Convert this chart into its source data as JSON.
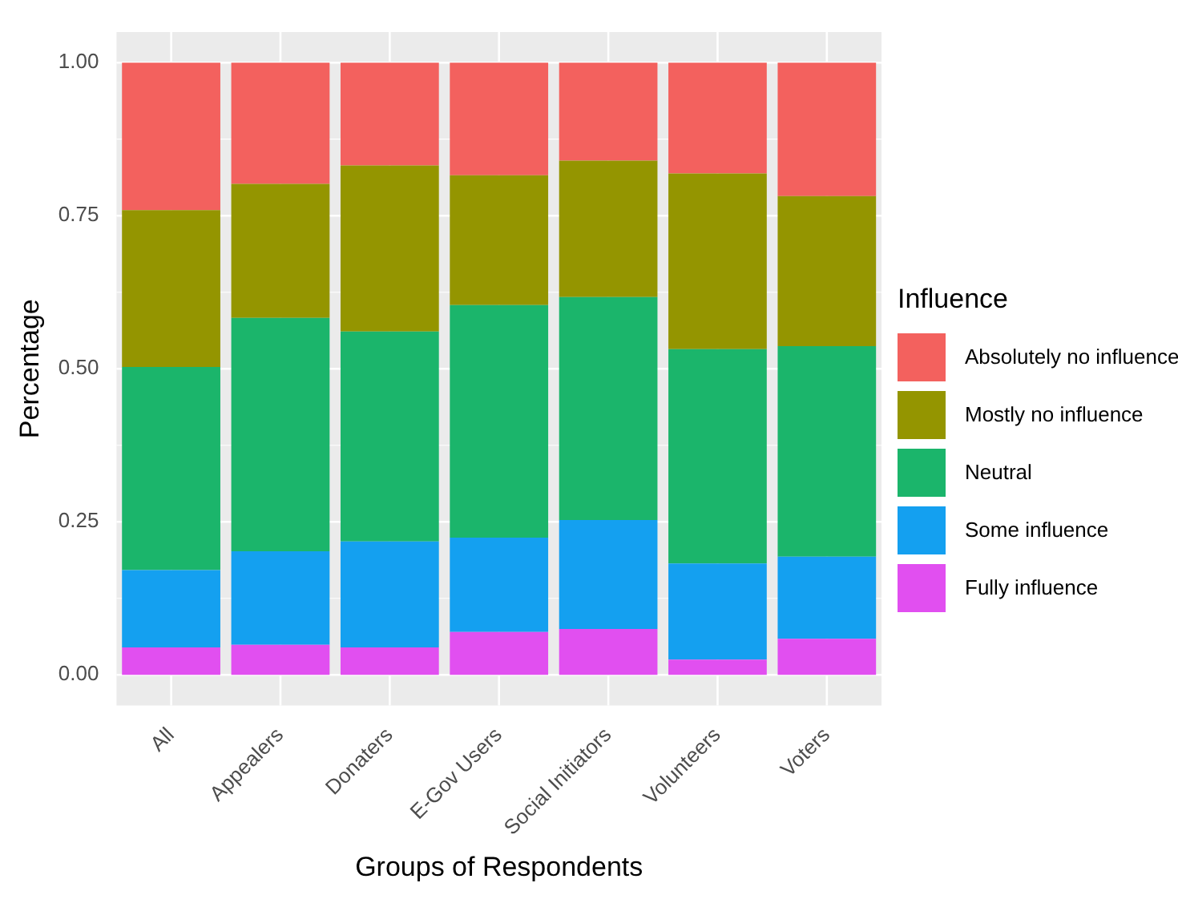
{
  "chart_data": {
    "type": "bar",
    "stacked": true,
    "xlabel": "Groups of Respondents",
    "ylabel": "Percentage",
    "legend_title": "Influence",
    "legend": "right",
    "categories": [
      "All",
      "Appealers",
      "Donaters",
      "E-Gov Users",
      "Social Initiators",
      "Volunteers",
      "Voters"
    ],
    "series": [
      {
        "name": "Fully influence",
        "color": "#e14ff0",
        "values": [
          0.045,
          0.049,
          0.045,
          0.07,
          0.075,
          0.025,
          0.059
        ]
      },
      {
        "name": "Some influence",
        "color": "#14a0f0",
        "values": [
          0.126,
          0.153,
          0.173,
          0.154,
          0.178,
          0.157,
          0.134
        ]
      },
      {
        "name": "Neutral",
        "color": "#1bb56b",
        "values": [
          0.332,
          0.381,
          0.343,
          0.38,
          0.364,
          0.35,
          0.344
        ]
      },
      {
        "name": "Mostly no influence",
        "color": "#949500",
        "values": [
          0.256,
          0.219,
          0.271,
          0.212,
          0.223,
          0.287,
          0.245
        ]
      },
      {
        "name": "Absolutely no influence",
        "color": "#f3615e",
        "values": [
          0.241,
          0.198,
          0.168,
          0.184,
          0.16,
          0.181,
          0.218
        ]
      }
    ],
    "ylim": [
      -0.05,
      1.05
    ],
    "yticks": [
      {
        "value": 0,
        "label": "0.00"
      },
      {
        "value": 0.25,
        "label": "0.25"
      },
      {
        "value": 0.5,
        "label": "0.50"
      },
      {
        "value": 0.75,
        "label": "0.75"
      },
      {
        "value": 1,
        "label": "1.00"
      }
    ],
    "grid": true
  }
}
